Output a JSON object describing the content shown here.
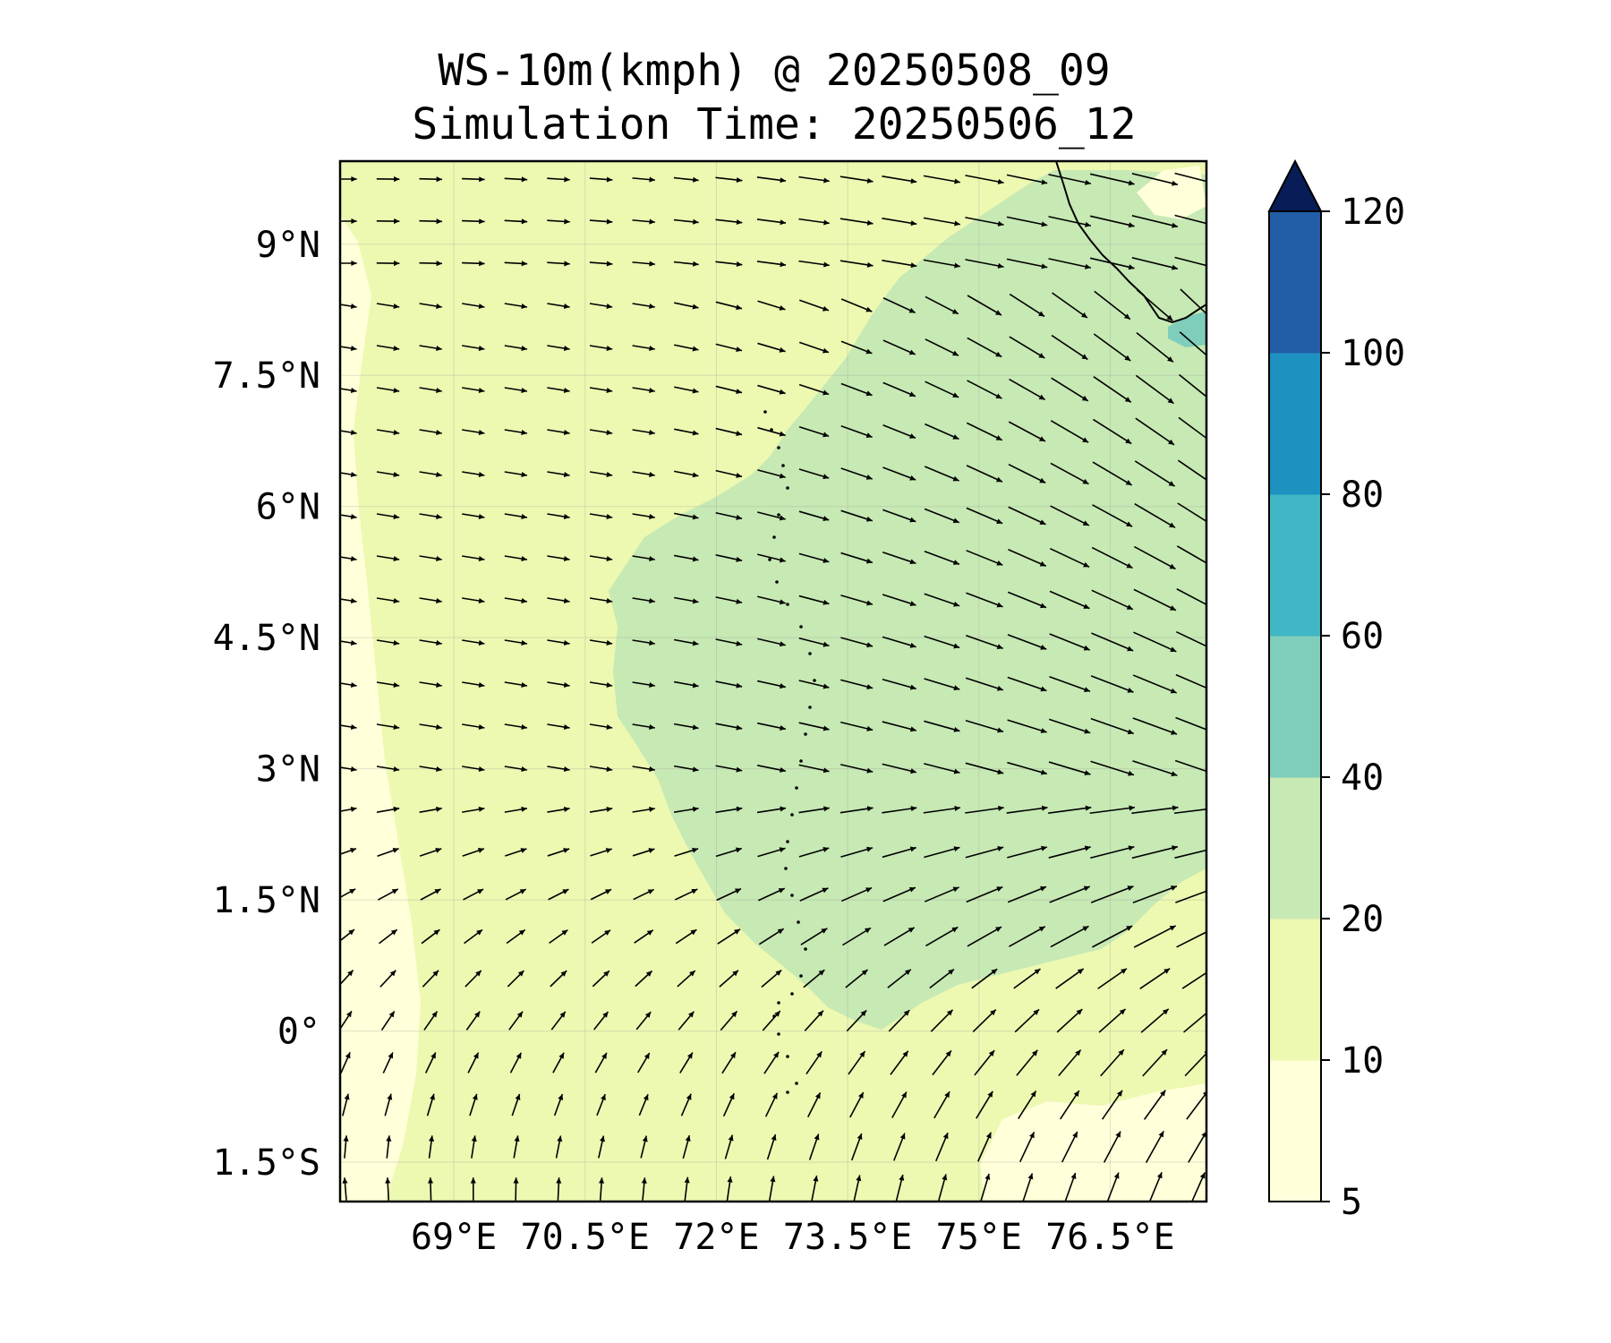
{
  "title_line1": "WS-10m(kmph) @ 20250508_09",
  "title_line2": "Simulation Time: 20250506_12",
  "map": {
    "lon_range": [
      67.7,
      77.6
    ],
    "lat_range": [
      -1.95,
      9.95
    ],
    "lon_ticks": [
      {
        "value": 69,
        "label": "69°E"
      },
      {
        "value": 70.5,
        "label": "70.5°E"
      },
      {
        "value": 72,
        "label": "72°E"
      },
      {
        "value": 73.5,
        "label": "73.5°E"
      },
      {
        "value": 75,
        "label": "75°E"
      },
      {
        "value": 76.5,
        "label": "76.5°E"
      }
    ],
    "lat_ticks": [
      {
        "value": 9,
        "label": "9°N"
      },
      {
        "value": 7.5,
        "label": "7.5°N"
      },
      {
        "value": 6,
        "label": "6°N"
      },
      {
        "value": 4.5,
        "label": "4.5°N"
      },
      {
        "value": 3,
        "label": "3°N"
      },
      {
        "value": 1.5,
        "label": "1.5°N"
      },
      {
        "value": 0,
        "label": "0°"
      },
      {
        "value": -1.5,
        "label": "1.5°S"
      }
    ],
    "gridlines": true
  },
  "colorbar": {
    "levels": [
      5,
      10,
      20,
      40,
      60,
      80,
      100,
      120
    ],
    "colors": [
      "#ffffd9",
      "#edf8b1",
      "#c7e9b4",
      "#7fcdbb",
      "#41b6c4",
      "#1d91c0",
      "#225ea8",
      "#253494"
    ],
    "extend_color": "#081d58",
    "extend": "max",
    "tick_labels": [
      "5",
      "10",
      "20",
      "40",
      "60",
      "80",
      "100",
      "120"
    ]
  },
  "wind_field": {
    "field_color": "#edf8b1",
    "high_speed_color": "#c7e9b4",
    "low_speed_color": "#ffffd9",
    "note_coast": "Indian subcontinent coastline top-right"
  }
}
